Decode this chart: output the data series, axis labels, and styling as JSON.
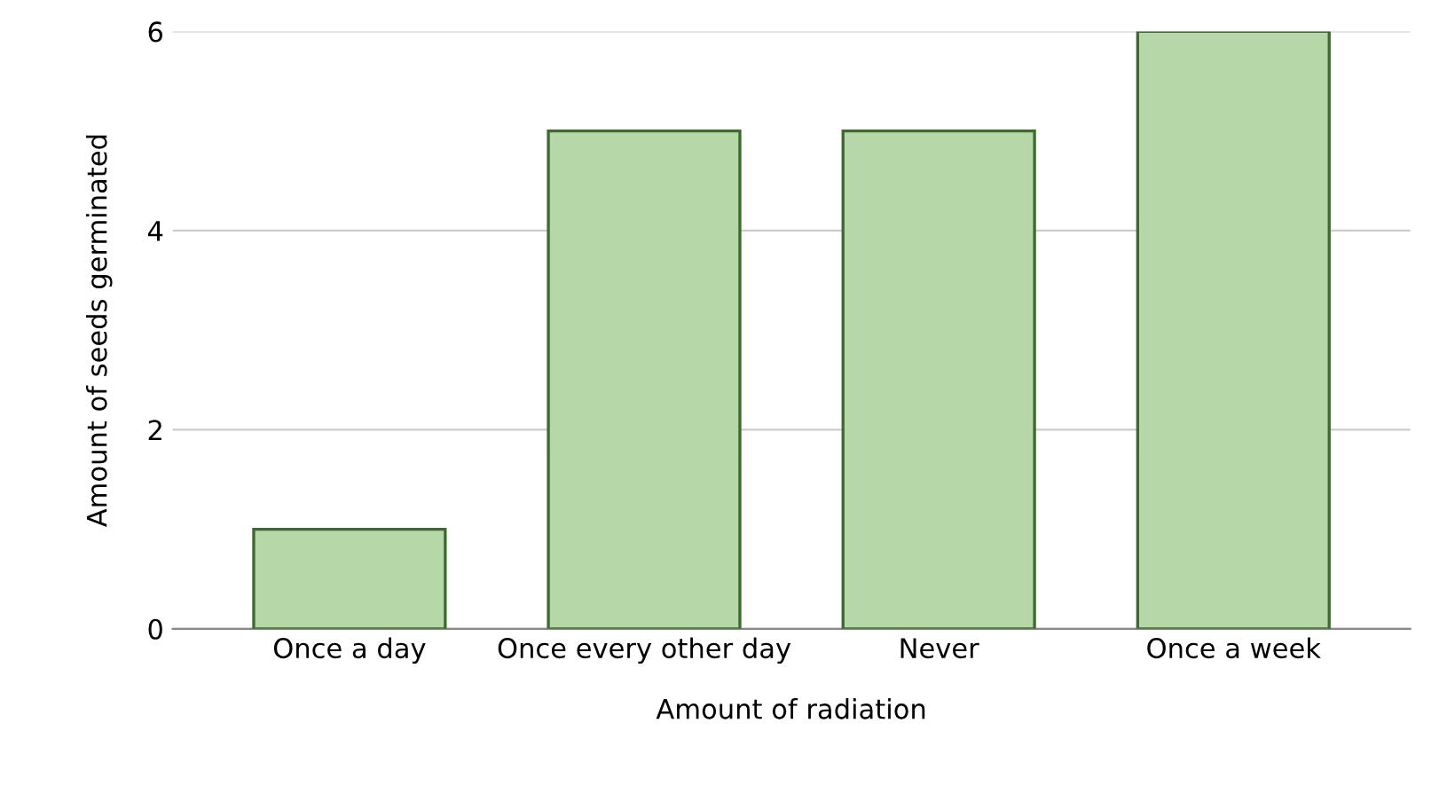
{
  "chart_data": {
    "type": "bar",
    "xlabel": "Amount of radiation",
    "ylabel": "Amount of seeds germinated",
    "categories": [
      "Once a day",
      "Once every other day",
      "Never",
      "Once a week"
    ],
    "values": [
      1,
      5,
      5,
      6
    ],
    "color": "#b6d7a8",
    "ylim": [
      0,
      6
    ],
    "yticks": [
      0,
      2,
      4,
      6
    ],
    "grid": "y"
  }
}
